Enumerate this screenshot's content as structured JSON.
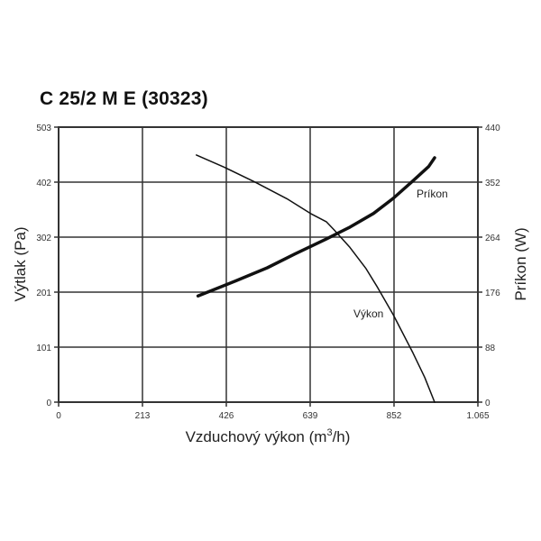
{
  "chart_data": {
    "type": "line",
    "title": "C 25/2 M E (30323)",
    "xlabel": "Vzduchový výkon (m",
    "xlabel_sup": "3",
    "xlabel_tail": "/h)",
    "ylabel": "Výtlak (Pa)",
    "y2label": "Príkon (W)",
    "x_ticks": [
      "0",
      "213",
      "426",
      "639",
      "852",
      "1.065"
    ],
    "y_ticks": [
      "0",
      "101",
      "201",
      "302",
      "402",
      "503"
    ],
    "y2_ticks": [
      "0",
      "88",
      "176",
      "264",
      "352",
      "440"
    ],
    "xlim": [
      0,
      1065
    ],
    "ylim": [
      0,
      503
    ],
    "y2lim": [
      0,
      440
    ],
    "grid": true,
    "series": [
      {
        "name": "Výkon",
        "axis": "y",
        "color": "#111111",
        "x": [
          350,
          420,
          500,
          580,
          640,
          680,
          700,
          740,
          780,
          810,
          850,
          900,
          930,
          955
        ],
        "y": [
          452,
          430,
          402,
          372,
          345,
          330,
          315,
          283,
          245,
          210,
          160,
          90,
          45,
          0
        ]
      },
      {
        "name": "Príkon",
        "axis": "y2",
        "color": "#111111",
        "x": [
          354,
          450,
          530,
          600,
          680,
          740,
          800,
          850,
          900,
          940,
          955
        ],
        "y": [
          170,
          194,
          215,
          237,
          261,
          280,
          302,
          326,
          354,
          377,
          391
        ]
      }
    ]
  }
}
